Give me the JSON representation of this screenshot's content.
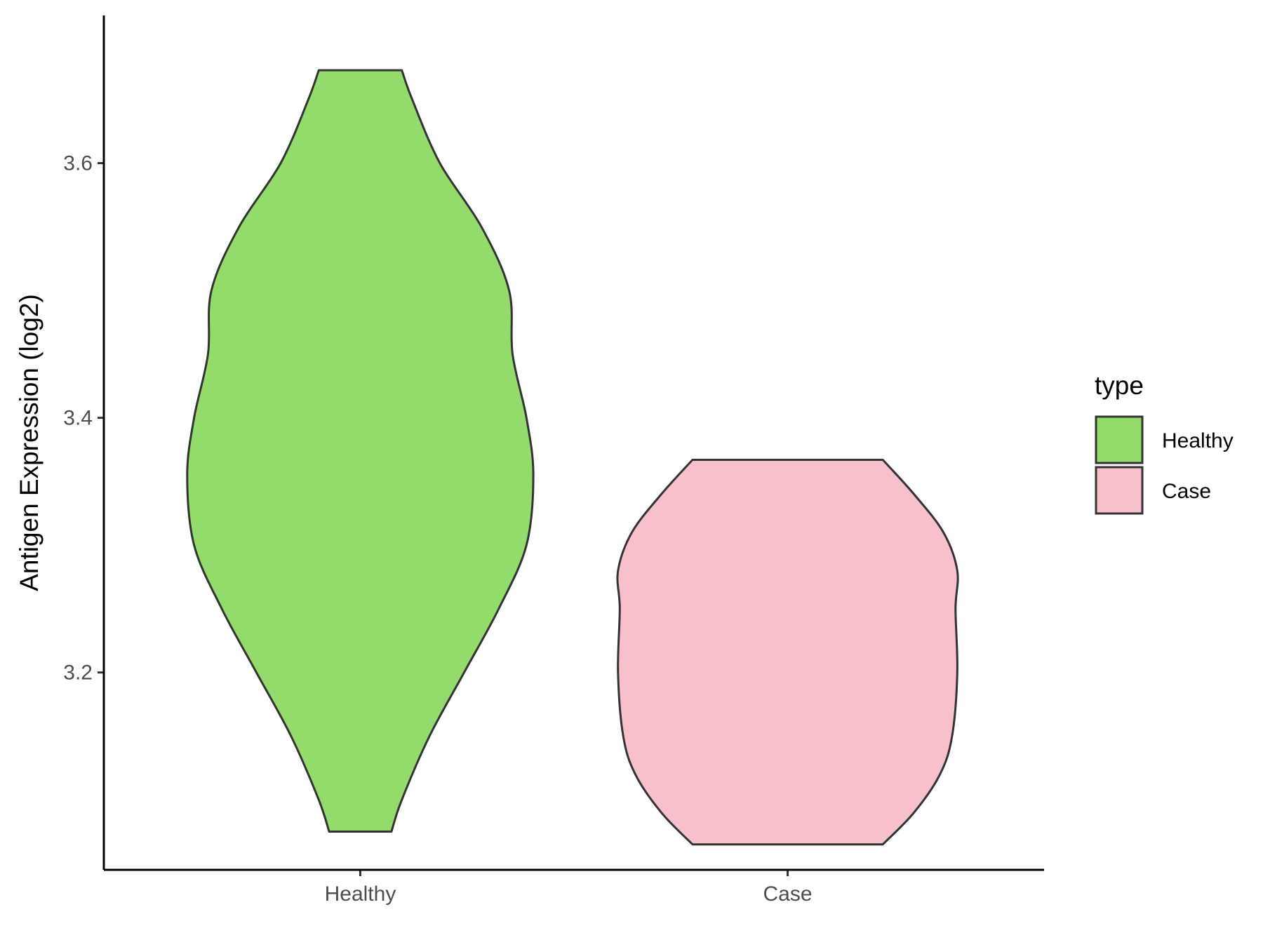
{
  "chart_data": {
    "type": "violin",
    "ylabel": "Antigen Expression (log2)",
    "xlabel": "",
    "categories": [
      "Healthy",
      "Case"
    ],
    "ylim": [
      3.045,
      3.716
    ],
    "yticks": [
      3.2,
      3.4,
      3.6
    ],
    "ytick_labels": [
      "3.2",
      "3.4",
      "3.6"
    ],
    "grid": false,
    "legend": {
      "title": "type",
      "position": "right",
      "entries": [
        {
          "label": "Healthy",
          "color": "#93dc6b"
        },
        {
          "label": "Case",
          "color": "#f7c0cb"
        }
      ]
    },
    "series": [
      {
        "color": "#93dc6b",
        "min": 3.075,
        "max": 3.673,
        "density": [
          [
            3.075,
            0.18
          ],
          [
            3.1,
            0.24
          ],
          [
            3.15,
            0.4
          ],
          [
            3.2,
            0.6
          ],
          [
            3.25,
            0.8
          ],
          [
            3.3,
            0.96
          ],
          [
            3.355,
            1.0
          ],
          [
            3.4,
            0.96
          ],
          [
            3.45,
            0.88
          ],
          [
            3.5,
            0.86
          ],
          [
            3.55,
            0.7
          ],
          [
            3.6,
            0.46
          ],
          [
            3.65,
            0.3
          ],
          [
            3.673,
            0.24
          ]
        ]
      },
      {
        "color": "#f7c0cb",
        "min": 3.065,
        "max": 3.367,
        "density": [
          [
            3.065,
            0.55
          ],
          [
            3.09,
            0.73
          ],
          [
            3.12,
            0.88
          ],
          [
            3.15,
            0.95
          ],
          [
            3.2,
            0.98
          ],
          [
            3.25,
            0.97
          ],
          [
            3.28,
            0.98
          ],
          [
            3.31,
            0.9
          ],
          [
            3.34,
            0.73
          ],
          [
            3.367,
            0.55
          ]
        ]
      }
    ]
  }
}
